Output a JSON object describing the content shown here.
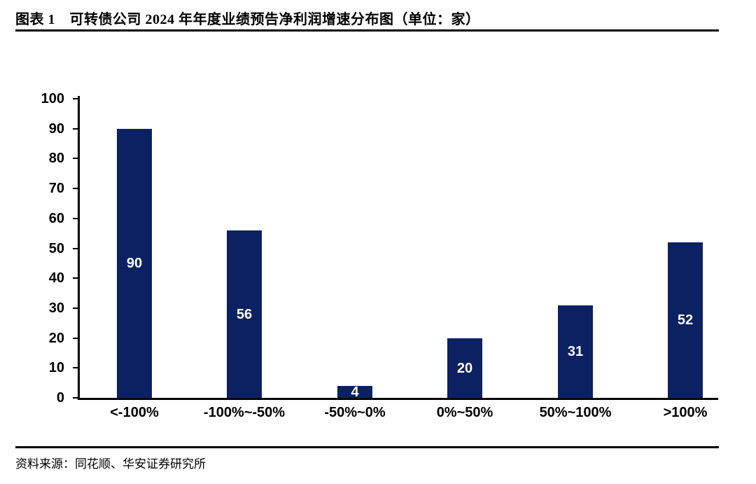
{
  "header": {
    "title": "图表 1　可转债公司 2024 年年度业绩预告净利润增速分布图（单位：家）"
  },
  "chart_data": {
    "type": "bar",
    "title": "可转债公司2024年年度业绩预告净利润增速分布图",
    "unit": "家",
    "categories": [
      "<-100%",
      "-100%~-50%",
      "-50%~0%",
      "0%~50%",
      "50%~100%",
      ">100%"
    ],
    "values": [
      90,
      56,
      4,
      20,
      31,
      52
    ],
    "ylim": [
      0,
      100
    ],
    "ytick_step": 10,
    "ytick_labels": [
      "0",
      "10",
      "20",
      "30",
      "40",
      "50",
      "60",
      "70",
      "80",
      "90",
      "100"
    ],
    "xlabel": "",
    "ylabel": "",
    "grid": false,
    "legend": "none",
    "bar_color": "#0C2161",
    "bar_label_color": "#ffffff",
    "axis_color": "#000000"
  },
  "footer": {
    "source": "资料来源：同花顺、华安证券研究所"
  }
}
